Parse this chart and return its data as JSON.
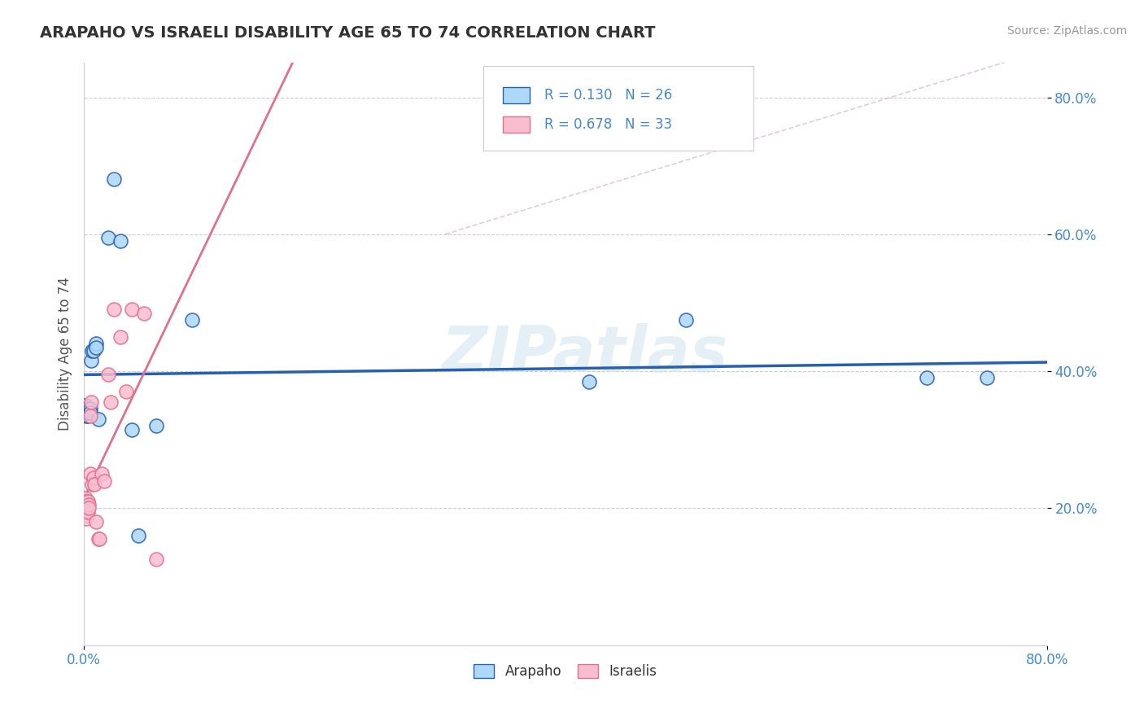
{
  "title": "ARAPAHO VS ISRAELI DISABILITY AGE 65 TO 74 CORRELATION CHART",
  "source": "Source: ZipAtlas.com",
  "ylabel": "Disability Age 65 to 74",
  "legend_entries": [
    {
      "label": "Arapaho",
      "R": 0.13,
      "N": 26,
      "color": "#add8f7",
      "line_color": "#2860b0"
    },
    {
      "label": "Israelis",
      "R": 0.678,
      "N": 33,
      "color": "#f9bdd0",
      "line_color": "#e07090"
    }
  ],
  "watermark": "ZIPatlas",
  "arapaho_x": [
    0.001,
    0.002,
    0.002,
    0.002,
    0.003,
    0.003,
    0.004,
    0.005,
    0.005,
    0.006,
    0.007,
    0.008,
    0.01,
    0.01,
    0.012,
    0.02,
    0.025,
    0.03,
    0.04,
    0.045,
    0.06,
    0.09,
    0.42,
    0.5,
    0.7,
    0.75
  ],
  "arapaho_y": [
    0.35,
    0.345,
    0.34,
    0.335,
    0.345,
    0.335,
    0.34,
    0.345,
    0.34,
    0.415,
    0.43,
    0.43,
    0.44,
    0.435,
    0.33,
    0.595,
    0.68,
    0.59,
    0.315,
    0.16,
    0.32,
    0.475,
    0.385,
    0.475,
    0.39,
    0.39
  ],
  "israelis_x": [
    0.001,
    0.001,
    0.001,
    0.001,
    0.001,
    0.002,
    0.002,
    0.002,
    0.002,
    0.003,
    0.003,
    0.003,
    0.004,
    0.004,
    0.005,
    0.005,
    0.006,
    0.007,
    0.008,
    0.009,
    0.01,
    0.012,
    0.013,
    0.015,
    0.017,
    0.02,
    0.022,
    0.025,
    0.03,
    0.035,
    0.04,
    0.05,
    0.06
  ],
  "israelis_y": [
    0.21,
    0.215,
    0.2,
    0.195,
    0.19,
    0.21,
    0.2,
    0.195,
    0.185,
    0.21,
    0.2,
    0.195,
    0.205,
    0.2,
    0.25,
    0.335,
    0.355,
    0.235,
    0.245,
    0.235,
    0.18,
    0.155,
    0.155,
    0.25,
    0.24,
    0.395,
    0.355,
    0.49,
    0.45,
    0.37,
    0.49,
    0.485,
    0.125
  ],
  "xmin": 0.0,
  "xmax": 0.8,
  "ymin": 0.0,
  "ymax": 0.85,
  "yticks": [
    0.2,
    0.4,
    0.6,
    0.8
  ],
  "ytick_labels": [
    "20.0%",
    "40.0%",
    "60.0%",
    "80.0%"
  ],
  "background_color": "#ffffff",
  "grid_color": "#cccccc",
  "title_color": "#333333",
  "axis_color": "#4488cc"
}
